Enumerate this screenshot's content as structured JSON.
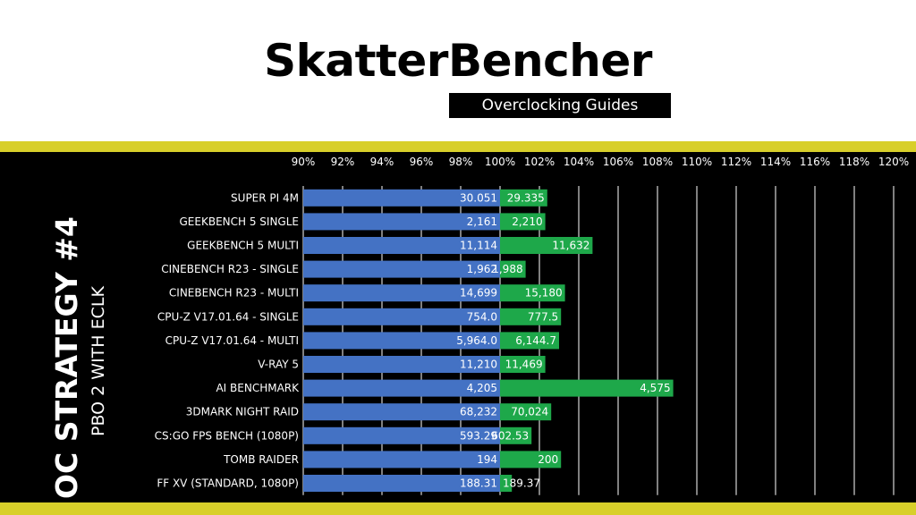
{
  "header": {
    "logo_title": "SkatterBencher",
    "logo_subtitle": "Overclocking Guides"
  },
  "side": {
    "title": "OC STRATEGY #4",
    "subtitle": "PBO 2 WITH ECLK"
  },
  "colors": {
    "accent_band": "#d8cf2a",
    "baseline_bar": "#4472c4",
    "oc_bar": "#1ea84a",
    "panel": "#000000"
  },
  "chart_data": {
    "type": "bar",
    "orientation": "horizontal",
    "title": "",
    "xlabel": "",
    "ylabel": "",
    "xlim": [
      90,
      120
    ],
    "tick_labels": [
      "90%",
      "92%",
      "94%",
      "96%",
      "98%",
      "100%",
      "102%",
      "104%",
      "106%",
      "108%",
      "110%",
      "112%",
      "114%",
      "116%",
      "118%",
      "120%"
    ],
    "grid": true,
    "categories": [
      "SUPER PI 4M",
      "GEEKBENCH 5 SINGLE",
      "GEEKBENCH 5 MULTI",
      "CINEBENCH R23 - SINGLE",
      "CINEBENCH R23 - MULTI",
      "CPU-Z V17.01.64 - SINGLE",
      "CPU-Z V17.01.64 - MULTI",
      "V-RAY 5",
      "AI BENCHMARK",
      "3DMARK NIGHT RAID",
      "CS:GO FPS BENCH (1080P)",
      "TOMB RAIDER",
      "FF XV (STANDARD, 1080P)"
    ],
    "series": [
      {
        "values": [
          100,
          100,
          100,
          100,
          100,
          100,
          100,
          100,
          100,
          100,
          100,
          100,
          100
        ],
        "labels": [
          "30.051",
          "2,161",
          "11,114",
          "1,962",
          "14,699",
          "754.0",
          "5,964.0",
          "11,210",
          "4,205",
          "68,232",
          "593.29",
          "194",
          "188.31"
        ]
      },
      {
        "values": [
          102.4,
          102.3,
          104.7,
          101.3,
          103.3,
          103.1,
          103.0,
          102.3,
          108.8,
          102.6,
          101.6,
          103.1,
          100.6
        ],
        "labels": [
          "29.335",
          "2,210",
          "11,632",
          "1,988",
          "15,180",
          "777.5",
          "6,144.7",
          "11,469",
          "4,575",
          "70,024",
          "602.53",
          "200",
          "189.37"
        ]
      }
    ]
  }
}
